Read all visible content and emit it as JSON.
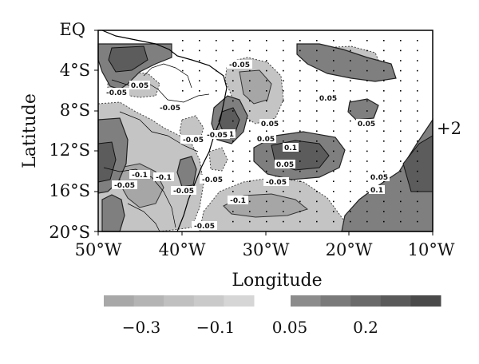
{
  "map": {
    "panel_label": "+2",
    "x_axis": {
      "title": "Longitude",
      "ticks": [
        "50°W",
        "40°W",
        "30°W",
        "20°W",
        "10°W"
      ],
      "range_deg_lon": [
        -50,
        -10
      ]
    },
    "y_axis": {
      "title": "Latitude",
      "ticks": [
        "EQ",
        "4°S",
        "8°S",
        "12°S",
        "16°S",
        "20°S"
      ],
      "range_deg_lat": [
        0,
        -20
      ]
    },
    "contour_labels": [
      "-0.05",
      "0.05",
      "-0.05",
      "0.05",
      "-0.05",
      "0.05",
      "0.05",
      "-0.05",
      "0.1",
      "0.05",
      "0.1",
      "0.05",
      "-0.1",
      "-0.1",
      "-0.05",
      "-0.05",
      "-0.05",
      "-0.1",
      "-0.05",
      "0.05",
      "0.1",
      "-0.05",
      "-0.05"
    ],
    "colorbar": {
      "negative_colors": [
        "#a8a8a8",
        "#b4b4b4",
        "#c0c0c0",
        "#cacaca",
        "#d6d6d6"
      ],
      "positive_colors": [
        "#8c8c8c",
        "#7a7a7a",
        "#6a6a6a",
        "#5a5a5a",
        "#4a4a4a"
      ],
      "labels": [
        "−0.3",
        "−0.1",
        "0.05",
        "0.2"
      ]
    },
    "colors": {
      "positive_fill": "#7f7f7f",
      "positive_strong": "#5c5c5c",
      "negative_fill": "#c4c4c4",
      "negative_strong": "#a6a6a6"
    }
  }
}
